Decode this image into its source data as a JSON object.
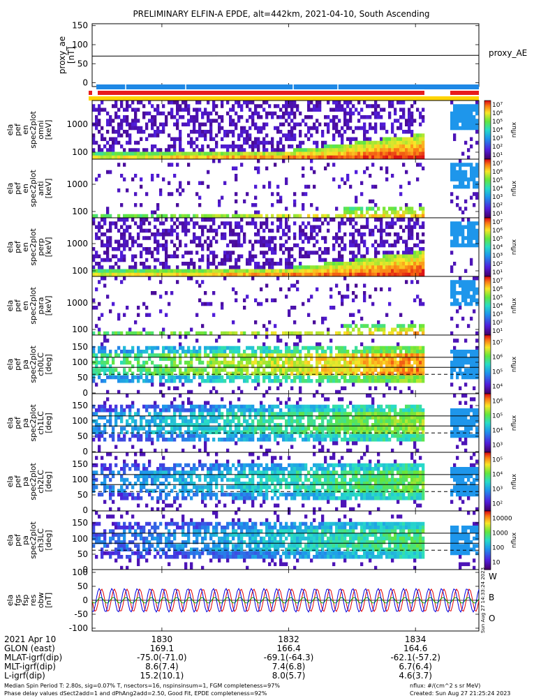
{
  "title": "PRELIMINARY ELFIN-A EPDE, alt=442km, 2021-04-10, South Ascending",
  "colors": {
    "bar_blue": "#1e88e5",
    "bar_red": "#e81c1c",
    "bar_yellow": "#ffd400",
    "fgs_red": "#e00000",
    "fgs_green": "#00b000",
    "fgs_blue": "#0000e0"
  },
  "chart_data": [
    {
      "type": "line",
      "name": "proxy_ae",
      "ylabel": "proxy_ae [nT]",
      "legend": "proxy_AE",
      "ylim": [
        -10,
        155
      ],
      "yticks": [
        "150",
        "100",
        "50",
        "0"
      ],
      "x": [
        1828.9,
        1835.0
      ],
      "values": [
        70,
        72
      ]
    },
    {
      "type": "heatmap",
      "ylabel": [
        "ela",
        "pef",
        "en",
        "spec2plot",
        "omni",
        "[keV]"
      ],
      "yticks": [
        "1000",
        "100"
      ],
      "colorbar_label": "nflux",
      "colorbar_ticks": [
        "10^7",
        "10^6",
        "10^5",
        "10^4",
        "10^3",
        "10^2",
        "10^1"
      ]
    },
    {
      "type": "heatmap",
      "ylabel": [
        "ela",
        "pef",
        "en",
        "spec2plot",
        "anti",
        "[keV]"
      ],
      "yticks": [
        "1000",
        "100"
      ],
      "colorbar_label": "nflux",
      "colorbar_ticks": [
        "10^7",
        "10^6",
        "10^5",
        "10^4",
        "10^3",
        "10^2",
        "10^1"
      ]
    },
    {
      "type": "heatmap",
      "ylabel": [
        "ela",
        "pef",
        "en",
        "spec2plot",
        "perp",
        "[keV]"
      ],
      "yticks": [
        "1000",
        "100"
      ],
      "colorbar_label": "nflux",
      "colorbar_ticks": [
        "10^7",
        "10^6",
        "10^5",
        "10^4",
        "10^3",
        "10^2",
        "10^1"
      ]
    },
    {
      "type": "heatmap",
      "ylabel": [
        "ela",
        "pef",
        "en",
        "spec2plot",
        "para",
        "[keV]"
      ],
      "yticks": [
        "1000",
        "100"
      ],
      "colorbar_label": "nflux",
      "colorbar_ticks": [
        "10^7",
        "10^6",
        "10^5",
        "10^4",
        "10^3",
        "10^2",
        "10^1"
      ]
    },
    {
      "type": "heatmap",
      "ylabel": [
        "ela",
        "pef",
        "pa",
        "spec2plot",
        "ch0LC",
        "[deg]"
      ],
      "yticks": [
        "150",
        "100",
        "50",
        "0"
      ],
      "colorbar_label": "nflux",
      "colorbar_ticks": [
        "10^7",
        "10^6",
        "10^5",
        "10^4"
      ]
    },
    {
      "type": "heatmap",
      "ylabel": [
        "ela",
        "pef",
        "pa",
        "spec2plot",
        "ch1LC",
        "[deg]"
      ],
      "yticks": [
        "150",
        "100",
        "50",
        "0"
      ],
      "colorbar_label": "nflux",
      "colorbar_ticks": [
        "10^6",
        "10^5",
        "10^4",
        "10^3"
      ]
    },
    {
      "type": "heatmap",
      "ylabel": [
        "ela",
        "pef",
        "pa",
        "spec2plot",
        "ch2LC",
        "[deg]"
      ],
      "yticks": [
        "150",
        "100",
        "50",
        "0"
      ],
      "colorbar_label": "nflux",
      "colorbar_ticks": [
        "10^5",
        "10^4",
        "10^3",
        "10^2"
      ]
    },
    {
      "type": "heatmap",
      "ylabel": [
        "ela",
        "pef",
        "pa",
        "spec2plot",
        "ch3LC",
        "[deg]"
      ],
      "yticks": [
        "150",
        "100",
        "50",
        "0"
      ],
      "colorbar_label": "nflux",
      "colorbar_ticks": [
        "10000",
        "1000",
        "100",
        "10"
      ]
    },
    {
      "type": "line",
      "ylabel": [
        "ela",
        "fgs",
        "fsp",
        "res",
        "obw",
        "[nT]"
      ],
      "ylim": [
        -110,
        110
      ],
      "yticks": [
        "100",
        "50",
        "0",
        "-50",
        "-100"
      ],
      "series": [
        {
          "name": "W",
          "amplitude": 40,
          "period": 0.2,
          "phase": 0.0
        },
        {
          "name": "B",
          "amplitude": 10,
          "period": 0.2,
          "phase": 0.5
        },
        {
          "name": "O",
          "amplitude": 42,
          "period": 0.2,
          "phase": 1.2
        }
      ]
    }
  ],
  "xaxis": {
    "date": "2021 Apr 10",
    "ticks": [
      "1830",
      "1832",
      "1834"
    ],
    "tick_values": [
      1830,
      1832,
      1834
    ],
    "range": [
      1828.9,
      1835.0
    ],
    "rows": [
      {
        "label": "GLON (east)",
        "values": [
          "169.1",
          "166.4",
          "164.6"
        ]
      },
      {
        "label": "MLAT-igrf(dip)",
        "values": [
          "-75.0(-71.0)",
          "-69.1(-64.3)",
          "-62.1(-57.2)"
        ]
      },
      {
        "label": "MLT-igrf(dip)",
        "values": [
          "8.6(7.4)",
          "7.4(6.8)",
          "6.7(6.4)"
        ]
      },
      {
        "label": "L-igrf(dip)",
        "values": [
          "15.2(10.1)",
          "8.0(5.7)",
          "4.6(3.7)"
        ]
      }
    ]
  },
  "footer": {
    "left1": "Median Spin Period T: 2.80s, sig=0.07% T, nsectors=16, nspinsinsum=1, FGM completeness=97%",
    "left2": "Phase delay values dSect2add=1 and dPhAng2add=2.50, Good Fit, EPDE completeness=92%",
    "right1": "nflux: #/(cm^2 s sr MeV)",
    "right2": "Created: Sun Aug 27 21:25:24 2023",
    "stamp": "Sun Aug 27 14:33:24 2023"
  }
}
